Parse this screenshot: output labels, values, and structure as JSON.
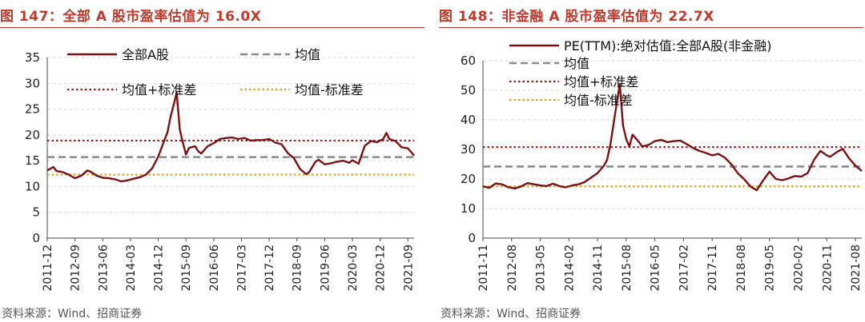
{
  "panels": [
    {
      "title": "图 147：全部 A 股市盈率估值为 16.0X",
      "source": "资料来源：Wind、招商证券"
    },
    {
      "title": "图 148：非金融 A 股市盈率估值为 22.7X",
      "source": "资料来源：Wind、招商证券"
    }
  ],
  "chart_data": [
    {
      "type": "line",
      "title": "全部 A 股市盈率估值为 16.0X",
      "ylim": [
        0,
        35
      ],
      "yticks": [
        0,
        5,
        10,
        15,
        20,
        25,
        30,
        35
      ],
      "x_range": [
        "2011-12",
        "2021-11"
      ],
      "xticks": [
        "2011-12",
        "2012-09",
        "2013-06",
        "2014-03",
        "2014-12",
        "2015-09",
        "2016-06",
        "2017-03",
        "2017-12",
        "2018-09",
        "2019-06",
        "2020-03",
        "2020-12",
        "2021-09"
      ],
      "legend_layout": "grid-2x2",
      "grid": true,
      "colors": {
        "main": "#7b1113",
        "mean": "#8c8c8c",
        "plus": "#a01c1c",
        "minus": "#d9a21b"
      },
      "series": [
        {
          "name": "全部A股",
          "x": [
            "2011-12",
            "2012-02",
            "2012-03",
            "2012-05",
            "2012-07",
            "2012-09",
            "2012-11",
            "2013-01",
            "2013-02",
            "2013-04",
            "2013-06",
            "2013-08",
            "2013-10",
            "2013-12",
            "2014-02",
            "2014-04",
            "2014-06",
            "2014-08",
            "2014-10",
            "2014-12",
            "2015-01",
            "2015-03",
            "2015-04",
            "2015-05",
            "2015-06",
            "2015-07",
            "2015-08",
            "2015-09",
            "2015-10",
            "2015-12",
            "2016-01",
            "2016-02",
            "2016-04",
            "2016-06",
            "2016-08",
            "2016-10",
            "2016-12",
            "2017-02",
            "2017-04",
            "2017-06",
            "2017-08",
            "2017-10",
            "2017-12",
            "2018-02",
            "2018-04",
            "2018-06",
            "2018-08",
            "2018-10",
            "2018-12",
            "2019-01",
            "2019-03",
            "2019-04",
            "2019-06",
            "2019-08",
            "2019-10",
            "2019-12",
            "2020-02",
            "2020-03",
            "2020-05",
            "2020-07",
            "2020-09",
            "2020-11",
            "2021-01",
            "2021-02",
            "2021-03",
            "2021-05",
            "2021-07",
            "2021-09",
            "2021-11"
          ],
          "values": [
            13.1,
            13.8,
            13.0,
            12.8,
            12.3,
            11.6,
            12.1,
            13.1,
            12.9,
            12.1,
            11.7,
            11.6,
            11.4,
            11.0,
            11.2,
            11.5,
            11.8,
            12.3,
            13.5,
            15.8,
            17.4,
            20.5,
            23.5,
            25.8,
            28.2,
            21.0,
            18.5,
            16.2,
            17.5,
            17.8,
            16.8,
            16.4,
            17.8,
            18.4,
            19.2,
            19.4,
            19.5,
            19.2,
            19.4,
            18.9,
            19.0,
            19.0,
            19.2,
            18.5,
            18.2,
            16.5,
            15.5,
            13.4,
            12.4,
            12.8,
            14.8,
            15.2,
            14.3,
            14.5,
            14.8,
            15.0,
            14.6,
            15.1,
            14.4,
            17.9,
            18.8,
            18.6,
            19.2,
            20.4,
            19.2,
            18.8,
            17.6,
            17.4,
            16.0
          ]
        },
        {
          "name": "均值",
          "constant": 15.7
        },
        {
          "name": "均值+标准差",
          "constant": 18.9
        },
        {
          "name": "均值-标准差",
          "constant": 12.3
        }
      ]
    },
    {
      "type": "line",
      "title": "非金融 A 股市盈率估值为 22.7X",
      "ylim": [
        0,
        60
      ],
      "yticks": [
        0,
        10,
        20,
        30,
        40,
        50,
        60
      ],
      "x_range": [
        "2011-11",
        "2021-10"
      ],
      "xticks": [
        "2011-11",
        "2012-08",
        "2013-05",
        "2014-02",
        "2014-11",
        "2015-08",
        "2016-05",
        "2017-02",
        "2017-11",
        "2018-08",
        "2019-05",
        "2020-02",
        "2020-11",
        "2021-08"
      ],
      "legend_layout": "column",
      "grid": true,
      "colors": {
        "main": "#7b1113",
        "mean": "#8c8c8c",
        "plus": "#a01c1c",
        "minus": "#d9a21b"
      },
      "series": [
        {
          "name": "PE(TTM):绝对估值:全部A股(非金融)",
          "x": [
            "2011-11",
            "2012-01",
            "2012-03",
            "2012-05",
            "2012-07",
            "2012-09",
            "2012-11",
            "2013-01",
            "2013-03",
            "2013-05",
            "2013-07",
            "2013-09",
            "2013-11",
            "2014-01",
            "2014-03",
            "2014-05",
            "2014-07",
            "2014-09",
            "2014-11",
            "2015-01",
            "2015-02",
            "2015-03",
            "2015-04",
            "2015-05",
            "2015-06",
            "2015-07",
            "2015-08",
            "2015-09",
            "2015-10",
            "2015-12",
            "2016-01",
            "2016-03",
            "2016-05",
            "2016-07",
            "2016-09",
            "2016-11",
            "2017-01",
            "2017-03",
            "2017-05",
            "2017-07",
            "2017-09",
            "2017-11",
            "2018-01",
            "2018-03",
            "2018-05",
            "2018-07",
            "2018-09",
            "2018-11",
            "2019-01",
            "2019-03",
            "2019-05",
            "2019-07",
            "2019-09",
            "2019-11",
            "2020-01",
            "2020-03",
            "2020-05",
            "2020-07",
            "2020-09",
            "2020-11",
            "2020-12",
            "2021-02",
            "2021-04",
            "2021-06",
            "2021-08",
            "2021-10"
          ],
          "values": [
            17.5,
            17.0,
            18.5,
            18.2,
            17.2,
            16.8,
            17.5,
            18.6,
            18.2,
            17.8,
            17.6,
            18.4,
            17.6,
            17.2,
            17.8,
            18.2,
            19.0,
            20.5,
            22.0,
            24.5,
            26.5,
            31.5,
            38.5,
            45.5,
            52.0,
            38.0,
            33.5,
            31.0,
            35.0,
            32.5,
            31.0,
            31.5,
            32.8,
            33.2,
            32.5,
            32.8,
            33.0,
            31.8,
            30.5,
            29.5,
            28.8,
            28.0,
            28.5,
            27.2,
            25.0,
            22.0,
            20.0,
            17.5,
            16.2,
            19.5,
            22.5,
            20.0,
            19.6,
            20.2,
            21.0,
            20.8,
            22.0,
            26.5,
            29.5,
            28.0,
            27.5,
            29.0,
            30.2,
            27.0,
            24.5,
            22.7
          ]
        },
        {
          "name": "均值",
          "constant": 24.2
        },
        {
          "name": "均值+标准差",
          "constant": 30.8
        },
        {
          "name": "均值-标准差",
          "constant": 17.5
        }
      ]
    }
  ]
}
